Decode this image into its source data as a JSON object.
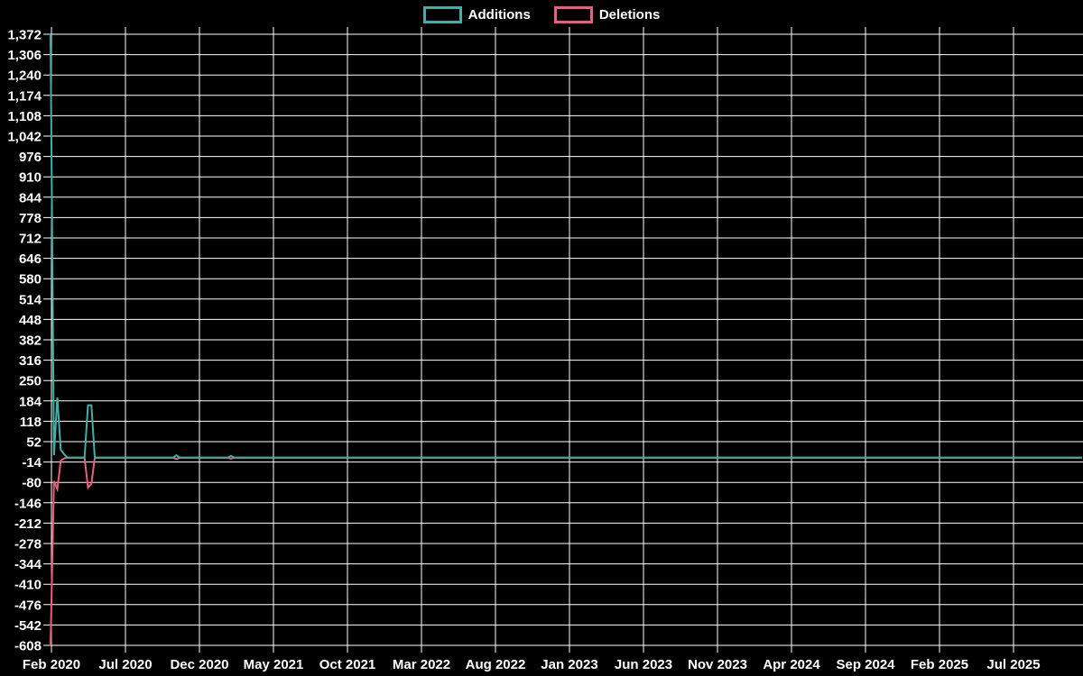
{
  "legend": {
    "position": "top-center",
    "items": [
      {
        "label": "Additions",
        "color": "#3fafaa"
      },
      {
        "label": "Deletions",
        "color": "#ee5c7b"
      }
    ]
  },
  "chart_data": {
    "type": "line",
    "title": "",
    "xlabel": "",
    "ylabel": "",
    "background": "#000000",
    "grid": true,
    "grid_color": "#ffffff",
    "y_axis": {
      "min": -608,
      "max": 1372,
      "step": 66,
      "tick_labels": [
        "1,372",
        "1,306",
        "1,240",
        "1,174",
        "1,108",
        "1,042",
        "976",
        "910",
        "844",
        "778",
        "712",
        "646",
        "580",
        "514",
        "448",
        "382",
        "316",
        "250",
        "184",
        "118",
        "52",
        "-14",
        "-80",
        "-146",
        "-212",
        "-278",
        "-344",
        "-410",
        "-476",
        "-542",
        "-608"
      ]
    },
    "x_axis": {
      "tick_labels": [
        "Feb 2020",
        "Jul 2020",
        "Dec 2020",
        "May 2021",
        "Oct 2021",
        "Mar 2022",
        "Aug 2022",
        "Jan 2023",
        "Jun 2023",
        "Nov 2023",
        "Apr 2024",
        "Sep 2024",
        "Feb 2025",
        "Jul 2025"
      ],
      "tick_month_offsets": [
        0,
        5,
        10,
        15,
        20,
        25,
        30,
        35,
        40,
        45,
        50,
        55,
        60,
        65
      ]
    },
    "weeks": [
      0,
      1,
      2,
      3,
      4,
      5,
      10,
      11,
      12,
      13,
      36,
      37,
      38,
      52,
      53,
      54,
      303
    ],
    "series": [
      {
        "name": "Additions",
        "color": "#3fafaa",
        "values": [
          1372,
          8,
          195,
          26,
          11,
          0,
          0,
          170,
          170,
          0,
          0,
          8,
          0,
          0,
          6,
          0,
          0
        ]
      },
      {
        "name": "Deletions",
        "color": "#ee5c7b",
        "values": [
          -608,
          -76,
          -102,
          -10,
          -2,
          0,
          0,
          -97,
          -85,
          0,
          0,
          -4,
          0,
          0,
          -3,
          0,
          0
        ]
      }
    ]
  }
}
